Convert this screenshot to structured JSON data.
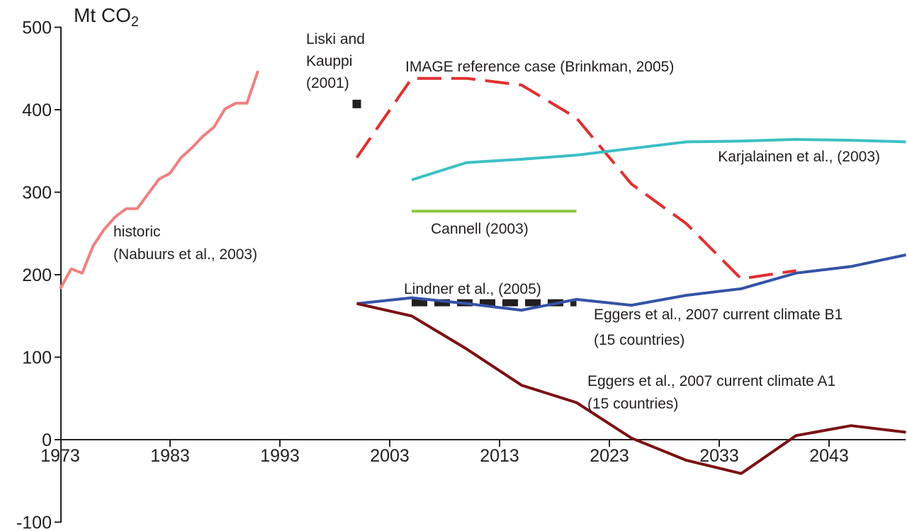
{
  "chart_data": {
    "type": "line",
    "title": "",
    "ylabel": "Mt CO",
    "ylabel_subscript": "2",
    "xlabel": "",
    "xlim": [
      1973,
      2051
    ],
    "ylim": [
      -100,
      500
    ],
    "x_ticks": [
      1973,
      1983,
      1993,
      2003,
      2013,
      2023,
      2033,
      2043
    ],
    "y_ticks": [
      -100,
      0,
      100,
      200,
      300,
      400,
      500
    ],
    "grid": false,
    "legend": "none",
    "series": [
      {
        "key": "historic",
        "color": "#f08080",
        "style": "solid",
        "x": [
          1973,
          1974,
          1975,
          1976,
          1977,
          1978,
          1979,
          1980,
          1981,
          1982,
          1983,
          1984,
          1985,
          1986,
          1987,
          1988,
          1989,
          1990,
          1991
        ],
        "y": [
          183,
          207,
          202,
          235,
          255,
          270,
          280,
          280,
          298,
          316,
          323,
          342,
          354,
          368,
          379,
          401,
          408,
          408,
          447
        ]
      },
      {
        "key": "liski",
        "color": "#231f20",
        "style": "point",
        "x": [
          2000
        ],
        "y": [
          407
        ]
      },
      {
        "key": "image",
        "color": "#e03030",
        "style": "dashed",
        "x": [
          2000,
          2005,
          2010,
          2015,
          2020,
          2025,
          2030,
          2035,
          2040
        ],
        "y": [
          342,
          438,
          438,
          430,
          390,
          310,
          262,
          195,
          205
        ]
      },
      {
        "key": "karjalainen",
        "color": "#3cc0c4",
        "style": "solid",
        "x": [
          2005,
          2010,
          2015,
          2020,
          2025,
          2030,
          2035,
          2040,
          2045,
          2050
        ],
        "y": [
          315,
          336,
          340,
          345,
          353,
          361,
          362,
          364,
          363,
          361
        ]
      },
      {
        "key": "cannell",
        "color": "#8cc63f",
        "style": "solid",
        "x": [
          2005,
          2020
        ],
        "y": [
          277,
          277
        ]
      },
      {
        "key": "lindner",
        "color": "#231f20",
        "style": "heavy-dashed",
        "x": [
          2005,
          2020
        ],
        "y": [
          166,
          166
        ]
      },
      {
        "key": "eggers_b1",
        "color": "#3553a6",
        "style": "solid",
        "x": [
          2000,
          2005,
          2010,
          2015,
          2020,
          2025,
          2030,
          2035,
          2040,
          2045,
          2050
        ],
        "y": [
          165,
          172,
          165,
          157,
          170,
          163,
          175,
          183,
          202,
          210,
          224
        ]
      },
      {
        "key": "eggers_a1",
        "color": "#7b1113",
        "style": "solid",
        "x": [
          2000,
          2005,
          2010,
          2015,
          2020,
          2025,
          2030,
          2035,
          2040,
          2045,
          2050
        ],
        "y": [
          165,
          150,
          110,
          66,
          45,
          2,
          -25,
          -41,
          5,
          17,
          9
        ]
      }
    ],
    "annotations": [
      {
        "key": "historic_1",
        "text": "historic"
      },
      {
        "key": "historic_2",
        "text": "(Nabuurs et al., 2003)"
      },
      {
        "key": "liski_1",
        "text": "Liski and"
      },
      {
        "key": "liski_2",
        "text": "Kauppi"
      },
      {
        "key": "liski_3",
        "text": "(2001)"
      },
      {
        "key": "image_1",
        "text": "IMAGE reference case (Brinkman, 2005)"
      },
      {
        "key": "karjalainen_1",
        "text": "Karjalainen et al., (2003)"
      },
      {
        "key": "cannell_1",
        "text": "Cannell (2003)"
      },
      {
        "key": "lindner_1",
        "text": "Lindner et al., (2005)"
      },
      {
        "key": "eggers_b1_1",
        "text": "Eggers et al., 2007 current climate B1"
      },
      {
        "key": "eggers_b1_2",
        "text": "(15 countries)"
      },
      {
        "key": "eggers_a1_1",
        "text": "Eggers et al., 2007 current climate A1"
      },
      {
        "key": "eggers_a1_2",
        "text": "(15 countries)"
      }
    ]
  }
}
